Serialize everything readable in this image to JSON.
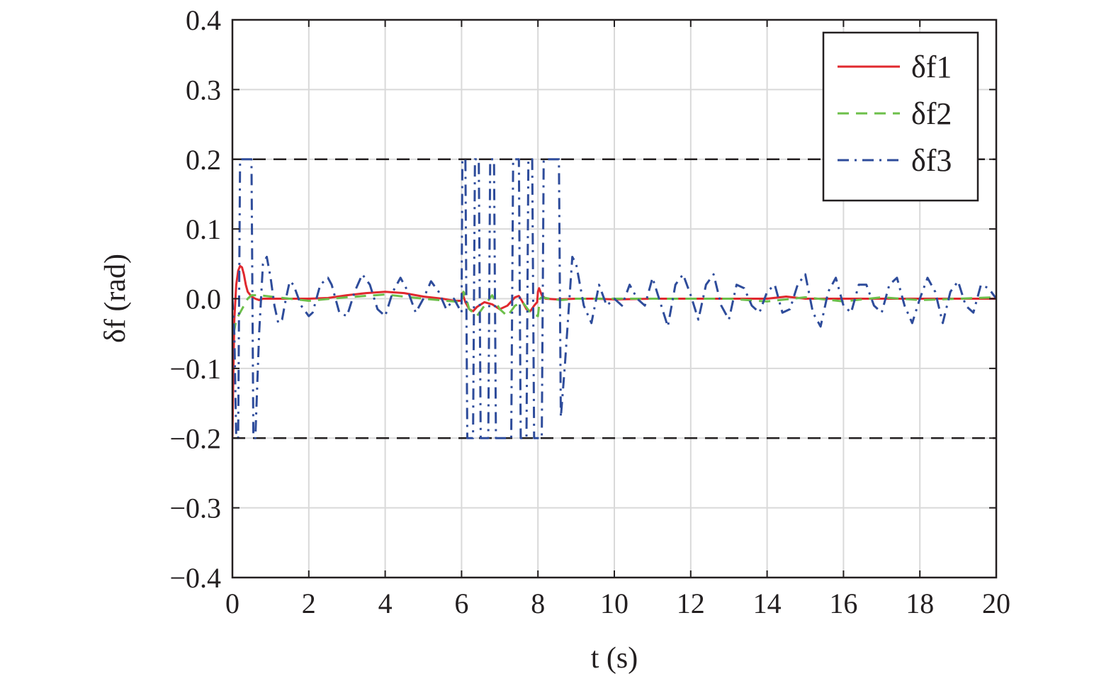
{
  "chart_data": {
    "type": "line",
    "xlabel": "t (s)",
    "ylabel": "δf (rad)",
    "xlim": [
      0,
      20
    ],
    "ylim": [
      -0.4,
      0.4
    ],
    "x_ticks": [
      0,
      2,
      4,
      6,
      8,
      10,
      12,
      14,
      16,
      18,
      20
    ],
    "x_tick_labels": [
      "0",
      "2",
      "4",
      "6",
      "8",
      "10",
      "12",
      "14",
      "16",
      "18",
      "20"
    ],
    "y_ticks": [
      -0.4,
      -0.3,
      -0.2,
      -0.1,
      0.0,
      0.1,
      0.2,
      0.3,
      0.4
    ],
    "y_tick_labels": [
      "−0.4",
      "−0.3",
      "−0.2",
      "−0.1",
      "0.0",
      "0.1",
      "0.2",
      "0.3",
      "0.4"
    ],
    "grid": true,
    "legend_position": "top-right",
    "reference_lines": [
      {
        "y": 0.2,
        "color": "#231f20",
        "dash": "dashed"
      },
      {
        "y": -0.2,
        "color": "#231f20",
        "dash": "dashed"
      }
    ],
    "series": [
      {
        "name": "δf1",
        "color": "#e0282e",
        "dash": "solid",
        "x": [
          0,
          0.02,
          0.05,
          0.1,
          0.15,
          0.2,
          0.25,
          0.3,
          0.35,
          0.4,
          0.5,
          0.6,
          0.7,
          0.8,
          1.0,
          1.2,
          1.5,
          2.0,
          2.5,
          3.0,
          3.5,
          4.0,
          4.5,
          5.0,
          5.5,
          5.8,
          6.0,
          6.02,
          6.1,
          6.2,
          6.3,
          6.4,
          6.6,
          6.8,
          7.0,
          7.2,
          7.4,
          7.5,
          7.6,
          7.7,
          7.8,
          7.9,
          7.98,
          8.0,
          8.03,
          8.1,
          8.2,
          8.5,
          9.0,
          9.5,
          10.0,
          11.0,
          12.0,
          13.0,
          14.0,
          14.5,
          15.0,
          16.0,
          17.0,
          18.0,
          19.0,
          20.0
        ],
        "y": [
          -0.2,
          -0.12,
          -0.03,
          0.02,
          0.04,
          0.047,
          0.045,
          0.035,
          0.02,
          0.01,
          0.003,
          0.0,
          -0.002,
          0.0,
          0.0,
          0.0,
          0.0,
          0.0,
          0.001,
          0.005,
          0.008,
          0.01,
          0.008,
          0.003,
          0.0,
          -0.003,
          -0.003,
          0.008,
          -0.005,
          -0.015,
          -0.018,
          -0.012,
          -0.005,
          -0.008,
          -0.015,
          -0.01,
          0.002,
          0.004,
          -0.005,
          -0.015,
          -0.018,
          -0.01,
          -0.005,
          0.01,
          0.015,
          0.005,
          0.0,
          -0.001,
          0.0,
          0.0,
          -0.001,
          0.0,
          0.0,
          0.0,
          0.0,
          0.003,
          0.0,
          0.0,
          0.0,
          0.0,
          0.0,
          0.0
        ]
      },
      {
        "name": "δf2",
        "color": "#6cbf4a",
        "dash": "dashed",
        "x": [
          0,
          0.05,
          0.1,
          0.2,
          0.3,
          0.4,
          0.5,
          0.7,
          1.0,
          1.5,
          2.0,
          3.0,
          4.0,
          5.0,
          6.0,
          6.05,
          6.1,
          6.2,
          6.4,
          6.6,
          6.8,
          7.0,
          7.2,
          7.4,
          7.6,
          7.8,
          8.0,
          8.05,
          8.1,
          8.3,
          8.6,
          9.0,
          10.0,
          11.0,
          12.0,
          13.0,
          14.0,
          15.0,
          16.0,
          17.0,
          18.0,
          19.0,
          20.0
        ],
        "y": [
          -0.04,
          -0.045,
          -0.03,
          -0.02,
          -0.01,
          0.0,
          0.005,
          0.005,
          0.003,
          0.0,
          -0.003,
          0.002,
          0.006,
          0.0,
          -0.005,
          0.01,
          0.005,
          -0.015,
          -0.025,
          -0.01,
          0.005,
          -0.015,
          -0.025,
          -0.01,
          -0.005,
          -0.02,
          -0.025,
          0.0,
          0.002,
          0.0,
          -0.002,
          0.0,
          0.0,
          0.0,
          0.0,
          0.0,
          -0.004,
          0.002,
          -0.004,
          0.002,
          -0.002,
          0.0,
          0.002
        ]
      },
      {
        "name": "δf3",
        "color": "#2e4c9b",
        "dash": "dashdot",
        "x": [
          0,
          0.05,
          0.1,
          0.15,
          0.2,
          0.25,
          0.3,
          0.5,
          0.55,
          0.6,
          0.7,
          0.8,
          0.9,
          1.0,
          1.1,
          1.2,
          1.3,
          1.4,
          1.5,
          1.6,
          1.8,
          2.0,
          2.1,
          2.3,
          2.5,
          2.6,
          2.8,
          3.0,
          3.2,
          3.4,
          3.6,
          3.8,
          4.0,
          4.2,
          4.4,
          4.6,
          4.8,
          5.0,
          5.2,
          5.4,
          5.6,
          5.8,
          6.0,
          6.02,
          6.1,
          6.15,
          6.3,
          6.35,
          6.45,
          6.5,
          6.7,
          6.75,
          6.85,
          6.9,
          7.3,
          7.35,
          7.5,
          7.55,
          7.7,
          7.75,
          7.85,
          7.9,
          8.1,
          8.15,
          8.2,
          8.25,
          8.4,
          8.45,
          8.55,
          8.6,
          8.7,
          8.9,
          9.0,
          9.2,
          9.4,
          9.6,
          9.8,
          10.0,
          10.2,
          10.4,
          10.6,
          10.8,
          11.0,
          11.2,
          11.4,
          11.6,
          11.8,
          12.0,
          12.2,
          12.4,
          12.6,
          12.8,
          13.0,
          13.2,
          13.4,
          13.6,
          13.8,
          14.0,
          14.2,
          14.4,
          14.6,
          14.8,
          15.0,
          15.2,
          15.4,
          15.6,
          15.8,
          16.0,
          16.2,
          16.4,
          16.6,
          16.8,
          17.0,
          17.2,
          17.4,
          17.6,
          17.8,
          18.0,
          18.2,
          18.4,
          18.6,
          18.8,
          19.0,
          19.2,
          19.4,
          19.6,
          19.8,
          20.0
        ],
        "y": [
          0.0,
          -0.05,
          -0.2,
          -0.2,
          0.2,
          0.2,
          0.2,
          0.2,
          -0.2,
          -0.2,
          -0.05,
          0.05,
          0.06,
          0.03,
          -0.01,
          -0.035,
          -0.03,
          0.0,
          0.025,
          0.02,
          -0.01,
          -0.025,
          -0.02,
          0.02,
          0.03,
          0.02,
          -0.02,
          -0.025,
          0.01,
          0.035,
          0.02,
          -0.015,
          -0.025,
          0.01,
          0.03,
          0.01,
          -0.02,
          0.0,
          0.025,
          0.01,
          -0.015,
          0.0,
          -0.02,
          0.2,
          0.2,
          -0.2,
          -0.2,
          0.2,
          0.2,
          -0.2,
          -0.2,
          0.2,
          0.2,
          -0.2,
          -0.2,
          0.2,
          0.2,
          -0.2,
          -0.2,
          0.2,
          0.2,
          -0.2,
          -0.2,
          0.2,
          0.2,
          0.2,
          0.2,
          0.2,
          0.2,
          -0.17,
          -0.1,
          0.06,
          0.05,
          -0.01,
          -0.035,
          0.02,
          -0.01,
          0.0,
          -0.01,
          0.02,
          0.0,
          -0.01,
          0.03,
          -0.005,
          -0.04,
          0.02,
          0.035,
          0.005,
          -0.03,
          0.02,
          0.035,
          -0.01,
          -0.03,
          0.02,
          0.015,
          -0.01,
          -0.02,
          0.01,
          0.02,
          -0.02,
          -0.015,
          0.02,
          0.035,
          -0.02,
          -0.04,
          0.01,
          0.03,
          -0.01,
          -0.02,
          0.02,
          0.02,
          -0.01,
          -0.02,
          0.02,
          0.03,
          -0.01,
          -0.035,
          0.0,
          0.03,
          0.01,
          -0.035,
          0.01,
          0.025,
          -0.01,
          -0.02,
          0.02,
          0.015,
          0.0
        ]
      }
    ]
  }
}
